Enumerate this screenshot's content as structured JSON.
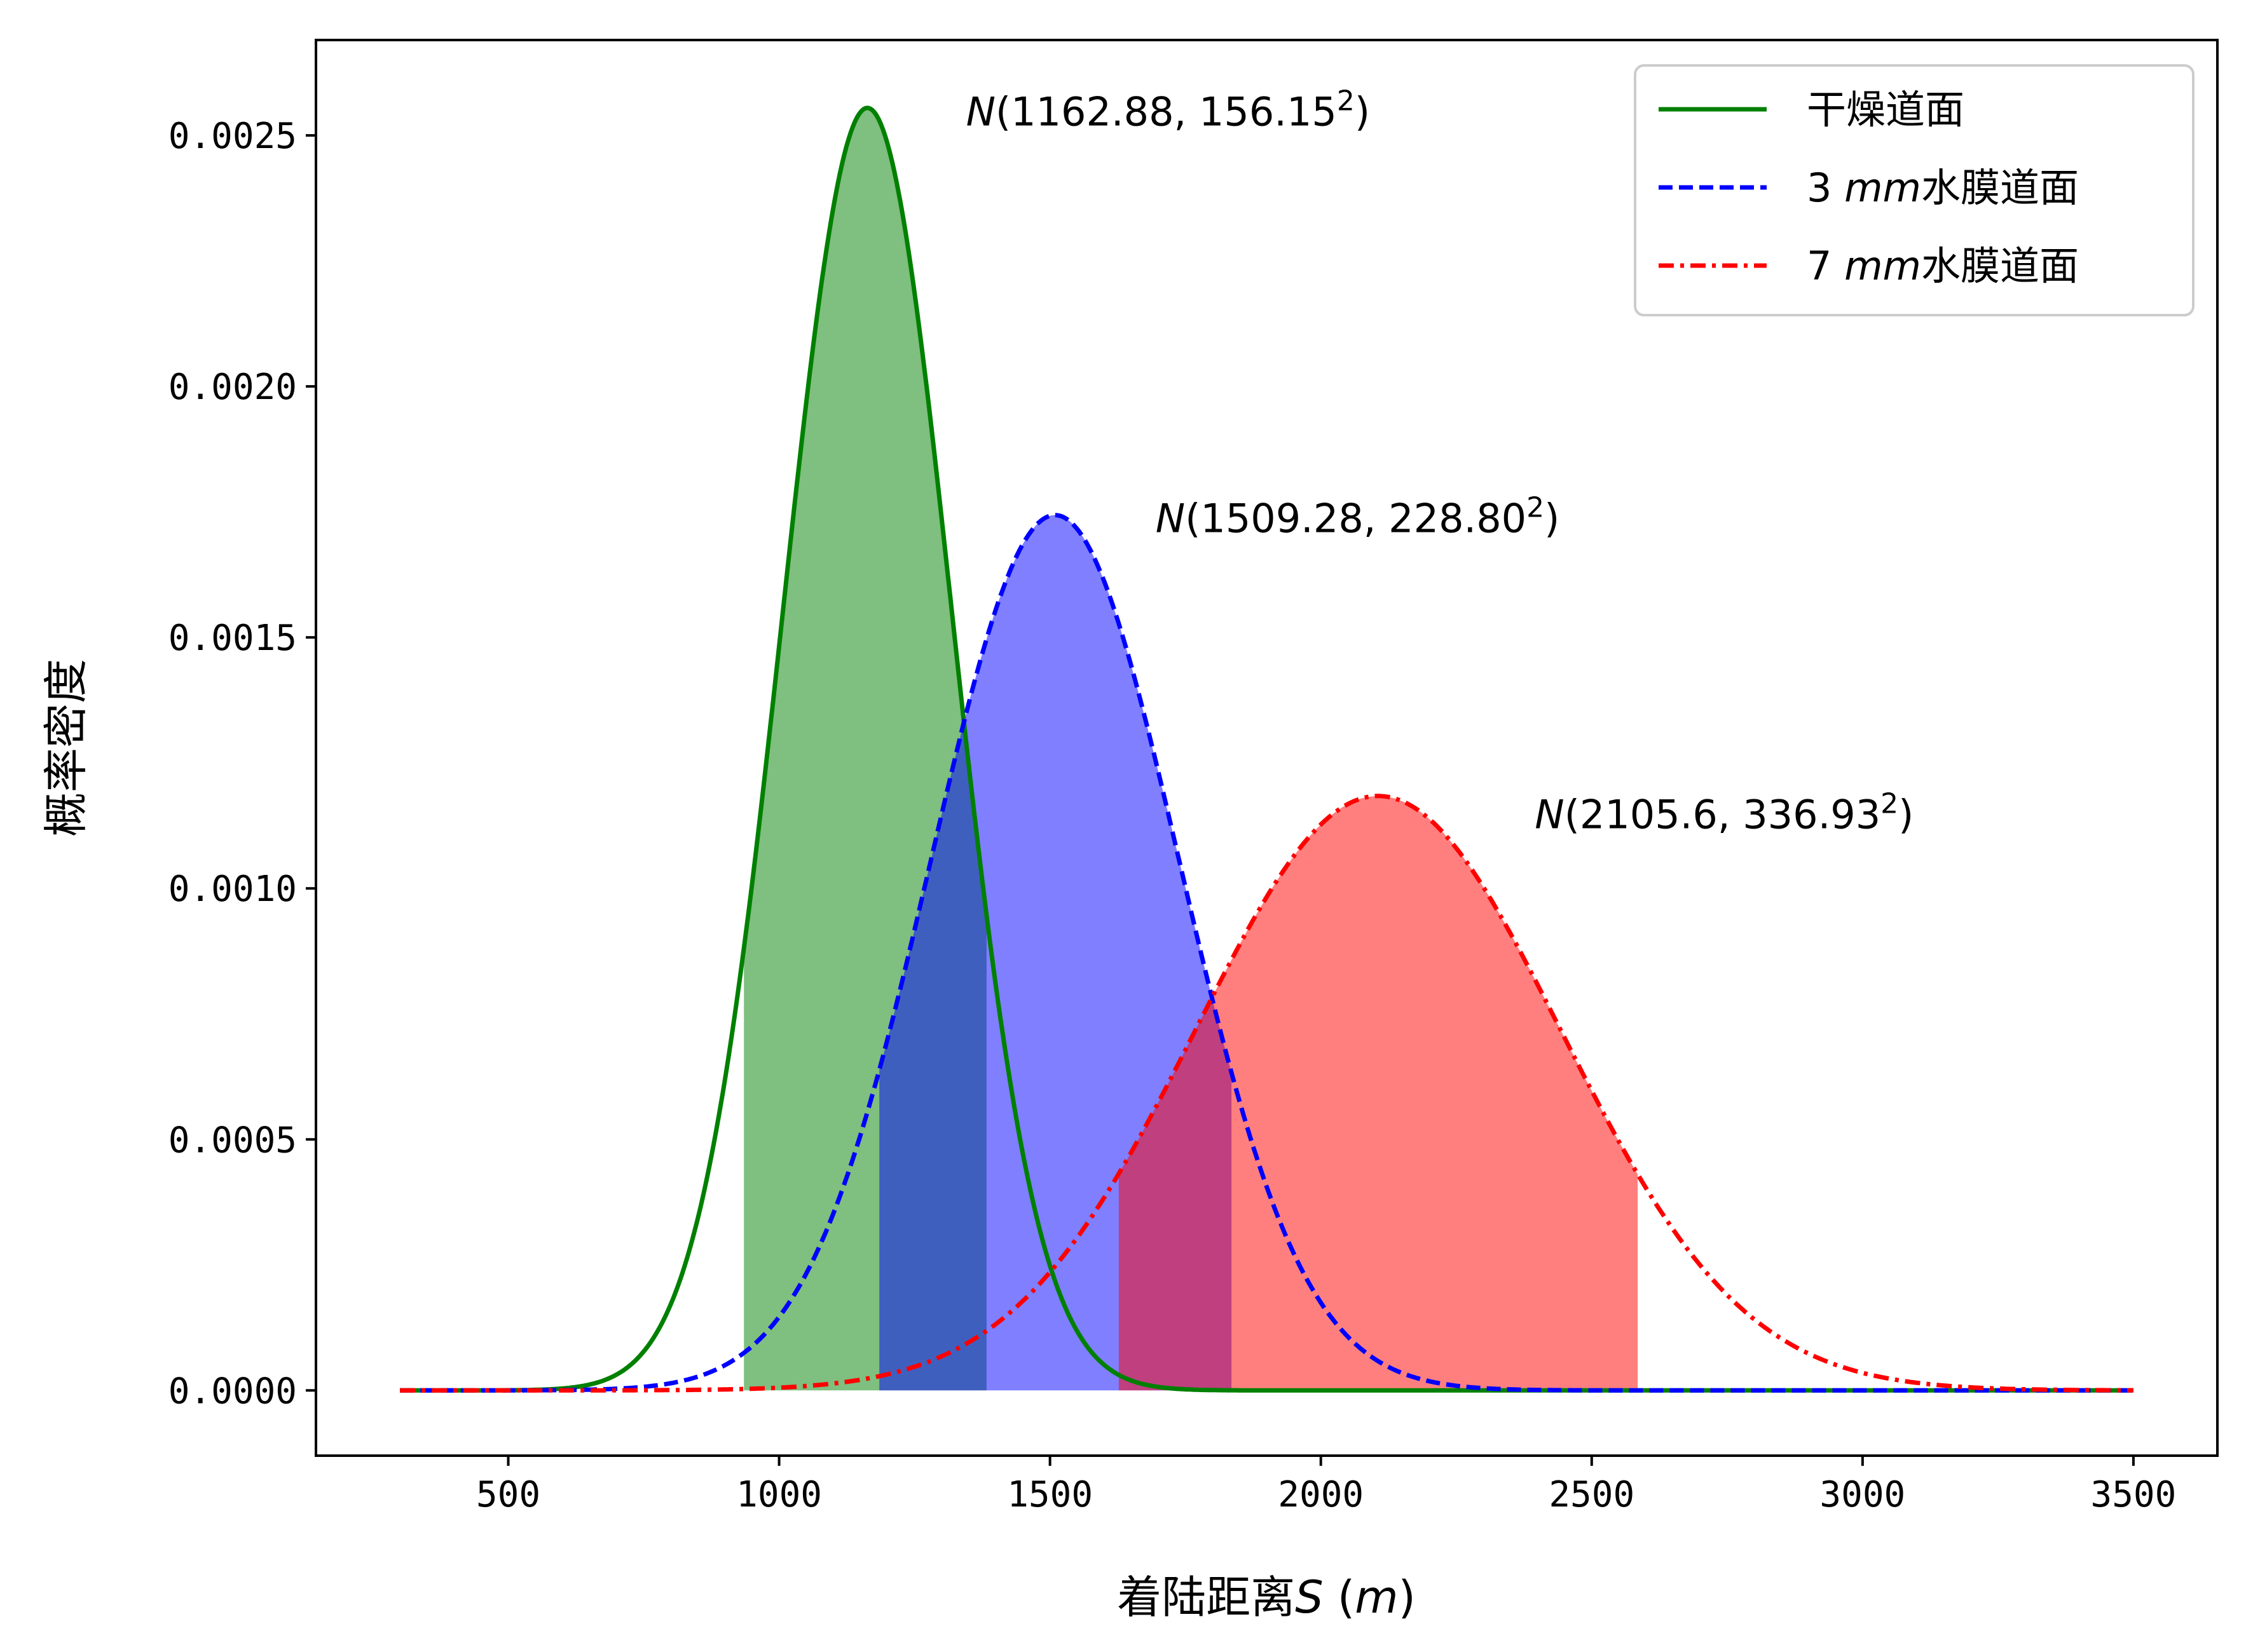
{
  "chart_data": {
    "type": "line",
    "xlabel": {
      "text": "着陆距离",
      "var": "S",
      "unit_open": " (",
      "unit": "m",
      "unit_close": ")"
    },
    "ylabel": "概率密度",
    "xlim": [
      145,
      3655
    ],
    "ylim": [
      -0.00013,
      0.00269
    ],
    "x_ticks": [
      500,
      1000,
      1500,
      2000,
      2500,
      3000,
      3500
    ],
    "x_tick_labels": [
      "500",
      "1000",
      "1500",
      "2000",
      "2500",
      "3000",
      "3500"
    ],
    "y_ticks": [
      0.0,
      0.0005,
      0.001,
      0.0015,
      0.002,
      0.0025
    ],
    "y_tick_labels": [
      "0.0000",
      "0.0005",
      "0.0010",
      "0.0015",
      "0.0020",
      "0.0025"
    ],
    "x_range": [
      300,
      3500
    ],
    "grid": false,
    "legend_position": "top-right",
    "series": [
      {
        "name": "干燥道面",
        "name_prefix": "",
        "name_italic": "",
        "distribution": "normal",
        "mean": 1162.88,
        "std": 156.15,
        "color": "#008000",
        "fill_alpha": 0.5,
        "line_style": "solid",
        "shaded_range": [
          935,
          1383
        ],
        "annotation": {
          "prefix": "N",
          "text": "(1162.88, 156.15",
          "sup": "2",
          "close": ")",
          "x": 1345,
          "y": 0.00252
        }
      },
      {
        "name": "水膜道面",
        "name_prefix": "3 ",
        "name_italic": "mm",
        "distribution": "normal",
        "mean": 1509.28,
        "std": 228.8,
        "color": "#0000ff",
        "fill_alpha": 0.5,
        "line_style": "dashed",
        "shaded_range": [
          1185,
          1835
        ],
        "annotation": {
          "prefix": "N",
          "text": "(1509.28, 228.80",
          "sup": "2",
          "close": ")",
          "x": 1695,
          "y": 0.00171
        }
      },
      {
        "name": "水膜道面",
        "name_prefix": "7 ",
        "name_italic": "mm",
        "distribution": "normal",
        "mean": 2105.6,
        "std": 336.93,
        "color": "#ff0000",
        "fill_alpha": 0.5,
        "line_style": "dashdot",
        "shaded_range": [
          1627,
          2585
        ],
        "annotation": {
          "prefix": "N",
          "text": "(2105.6, 336.93",
          "sup": "2",
          "close": ")",
          "x": 2395,
          "y": 0.00112
        }
      }
    ]
  }
}
